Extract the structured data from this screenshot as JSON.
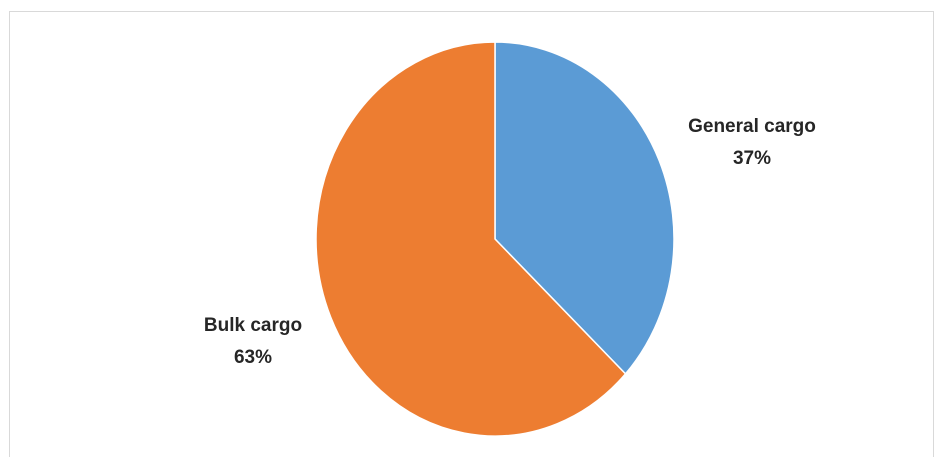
{
  "chart_data": {
    "type": "pie",
    "slices": [
      {
        "name": "General cargo",
        "value": 37,
        "label": "37%",
        "color": "#5B9BD5"
      },
      {
        "name": "Bulk cargo",
        "value": 63,
        "label": "63%",
        "color": "#ED7D31"
      }
    ],
    "start_angle": "12 o'clock",
    "direction": "clockwise",
    "legend": "none",
    "data_labels": "outside"
  }
}
